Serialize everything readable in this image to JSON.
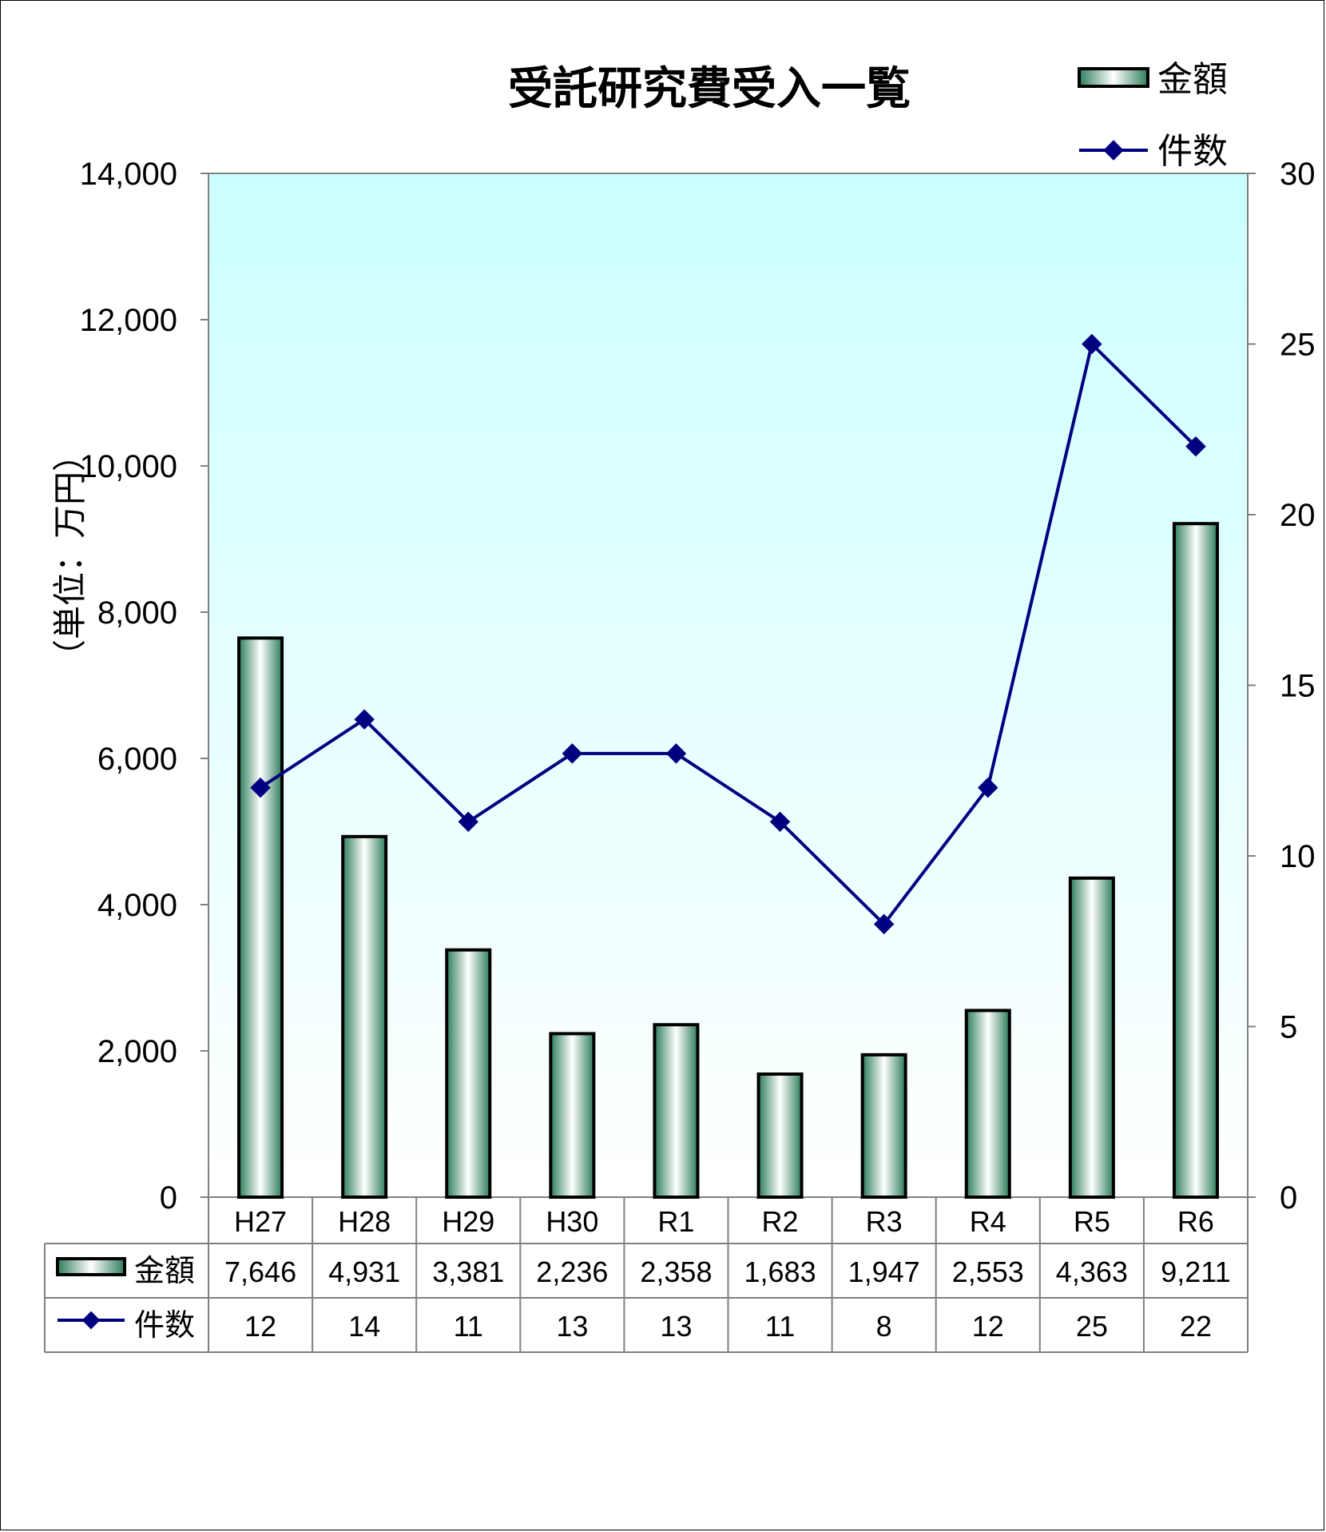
{
  "chart_data": {
    "type": "bar",
    "title": "受託研究費受入一覧",
    "ylabel": "（単位：万円）",
    "categories": [
      "H27",
      "H28",
      "H29",
      "H30",
      "R1",
      "R2",
      "R3",
      "R4",
      "R5",
      "R6"
    ],
    "series": [
      {
        "name": "金額",
        "type": "bar",
        "axis": "left",
        "values": [
          7646,
          4931,
          3381,
          2236,
          2358,
          1683,
          1947,
          2553,
          4363,
          9211
        ],
        "labels": [
          "7,646",
          "4,931",
          "3,381",
          "2,236",
          "2,358",
          "1,683",
          "1,947",
          "2,553",
          "4,363",
          "9,211"
        ]
      },
      {
        "name": "件数",
        "type": "line",
        "axis": "right",
        "values": [
          12,
          14,
          11,
          13,
          13,
          11,
          8,
          12,
          25,
          22
        ],
        "labels": [
          "12",
          "14",
          "11",
          "13",
          "13",
          "11",
          "8",
          "12",
          "25",
          "22"
        ]
      }
    ],
    "ylim": [
      0,
      14000
    ],
    "y2lim": [
      0,
      30
    ],
    "yticks": [
      "0",
      "2,000",
      "4,000",
      "6,000",
      "8,000",
      "10,000",
      "12,000",
      "14,000"
    ],
    "y2ticks": [
      "0",
      "5",
      "10",
      "15",
      "20",
      "25",
      "30"
    ],
    "legend_position": "top-right",
    "data_table": true,
    "colors": {
      "plot_bg_top": "#ccffff",
      "plot_bg_bottom": "#ffffff",
      "bar_dark": "#2e7d5b",
      "bar_light": "#ffffff",
      "line": "#000080"
    }
  }
}
